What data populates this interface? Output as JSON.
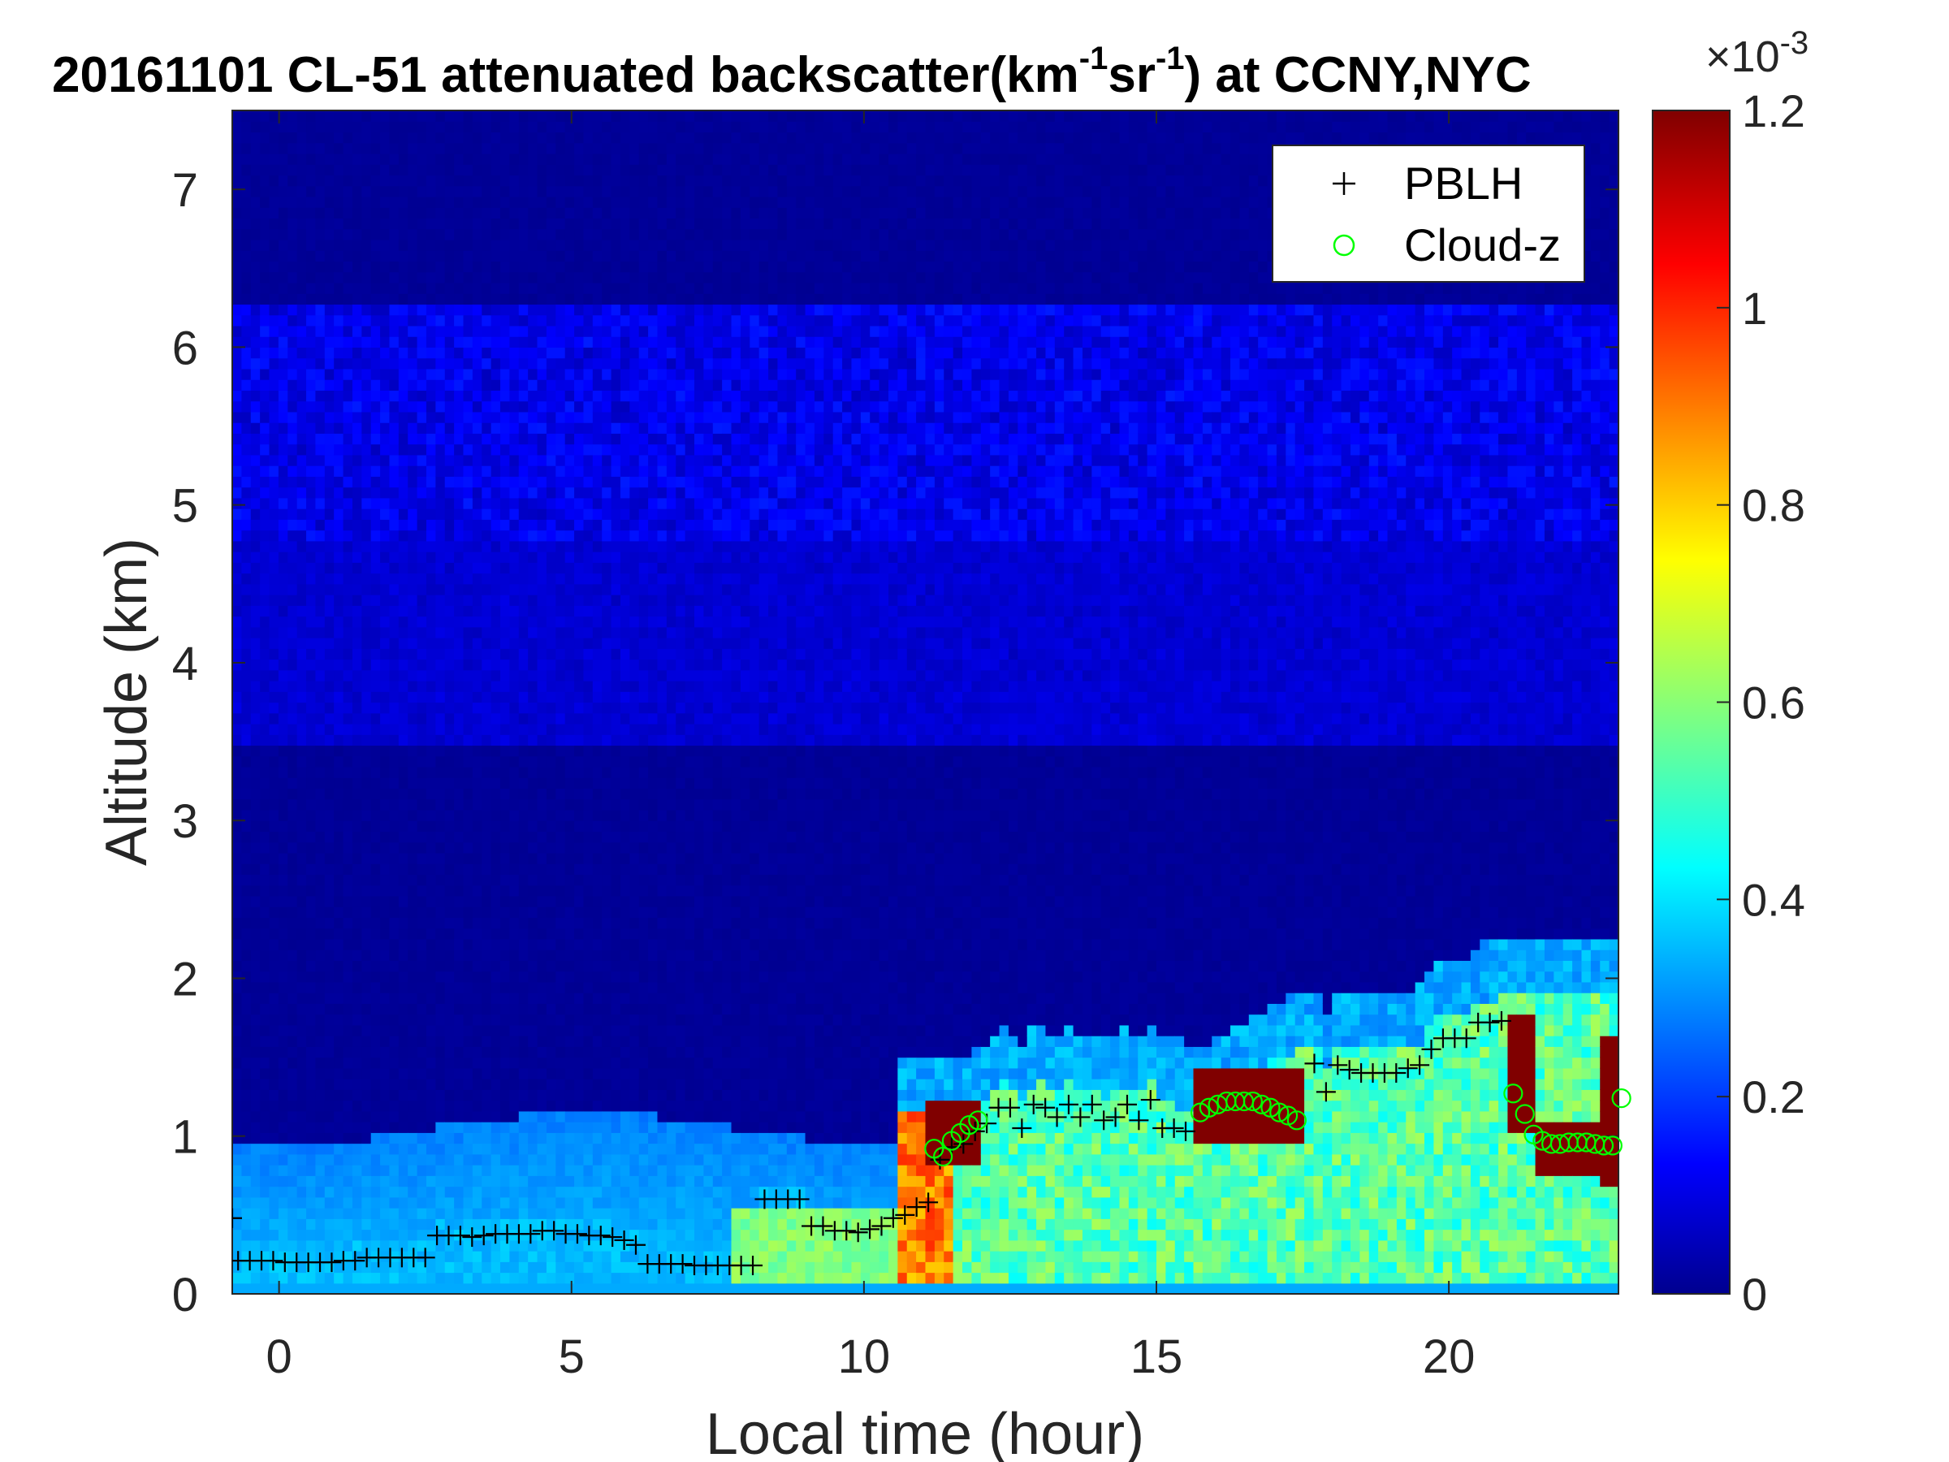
{
  "chart_data": {
    "type": "heatmap",
    "title": {
      "prefix": "20161101  CL-51 attenuated backscatter(km",
      "sup1": "-1",
      "mid": "sr",
      "sup2": "-1",
      "suffix": ") at CCNY,NYC"
    },
    "xlabel": "Local time (hour)",
    "ylabel": "Altitude (km)",
    "xlim": [
      -0.8,
      22.9
    ],
    "ylim": [
      0,
      7.5
    ],
    "x_ticks": [
      {
        "value": 0,
        "label": "0"
      },
      {
        "value": 5,
        "label": "5"
      },
      {
        "value": 10,
        "label": "10"
      },
      {
        "value": 15,
        "label": "15"
      },
      {
        "value": 20,
        "label": "20"
      }
    ],
    "y_ticks": [
      {
        "value": 0,
        "label": "0"
      },
      {
        "value": 1,
        "label": "1"
      },
      {
        "value": 2,
        "label": "2"
      },
      {
        "value": 3,
        "label": "3"
      },
      {
        "value": 4,
        "label": "4"
      },
      {
        "value": 5,
        "label": "5"
      },
      {
        "value": 6,
        "label": "6"
      },
      {
        "value": 7,
        "label": "7"
      }
    ],
    "colorbar": {
      "colormap": "jet",
      "range": [
        0,
        1.2
      ],
      "exponent_label": {
        "base": "×10",
        "sup": "-3"
      },
      "ticks": [
        {
          "value": 0,
          "label": "0"
        },
        {
          "value": 0.2,
          "label": "0.2"
        },
        {
          "value": 0.4,
          "label": "0.4"
        },
        {
          "value": 0.6,
          "label": "0.6"
        },
        {
          "value": 0.8,
          "label": "0.8"
        },
        {
          "value": 1.0,
          "label": "1"
        },
        {
          "value": 1.2,
          "label": "1.2"
        }
      ]
    },
    "legend": {
      "placement": "top-right",
      "entries": [
        {
          "name": "PBLH",
          "marker": "+",
          "color": "#000000"
        },
        {
          "name": "Cloud-z",
          "marker": "o",
          "color": "#00ff00"
        }
      ]
    },
    "series": [
      {
        "name": "PBLH",
        "x": [
          -0.8,
          -0.7,
          -0.5,
          -0.3,
          -0.1,
          0.1,
          0.3,
          0.5,
          0.7,
          0.9,
          1.1,
          1.3,
          1.5,
          1.7,
          1.9,
          2.1,
          2.3,
          2.5,
          2.7,
          2.9,
          3.1,
          3.3,
          3.5,
          3.7,
          3.9,
          4.1,
          4.3,
          4.5,
          4.7,
          4.9,
          5.1,
          5.3,
          5.5,
          5.7,
          5.9,
          6.1,
          6.3,
          6.5,
          6.7,
          6.9,
          7.1,
          7.3,
          7.5,
          7.7,
          7.9,
          8.1,
          8.3,
          8.5,
          8.7,
          8.9,
          9.1,
          9.3,
          9.5,
          9.7,
          9.9,
          10.1,
          10.3,
          10.5,
          10.7,
          10.9,
          11.1,
          11.3,
          11.5,
          11.7,
          11.9,
          12.1,
          12.3,
          12.5,
          12.7,
          12.9,
          13.1,
          13.3,
          13.5,
          13.7,
          13.9,
          14.1,
          14.3,
          14.5,
          14.7,
          14.9,
          15.1,
          15.3,
          15.5,
          17.7,
          17.9,
          18.1,
          18.3,
          18.5,
          18.7,
          18.9,
          19.1,
          19.3,
          19.5,
          19.7,
          19.9,
          20.1,
          20.3,
          20.5,
          20.7,
          20.9
        ],
        "y": [
          0.48,
          0.21,
          0.21,
          0.21,
          0.21,
          0.2,
          0.2,
          0.2,
          0.2,
          0.2,
          0.21,
          0.21,
          0.23,
          0.23,
          0.23,
          0.23,
          0.23,
          0.23,
          0.37,
          0.37,
          0.37,
          0.36,
          0.37,
          0.38,
          0.38,
          0.38,
          0.38,
          0.4,
          0.4,
          0.38,
          0.38,
          0.37,
          0.37,
          0.36,
          0.34,
          0.31,
          0.19,
          0.19,
          0.19,
          0.19,
          0.18,
          0.18,
          0.18,
          0.18,
          0.18,
          0.18,
          0.6,
          0.6,
          0.6,
          0.6,
          0.43,
          0.43,
          0.4,
          0.4,
          0.39,
          0.41,
          0.43,
          0.48,
          0.5,
          0.55,
          0.58,
          0.85,
          0.93,
          0.95,
          1.03,
          1.08,
          1.18,
          1.18,
          1.05,
          1.2,
          1.18,
          1.12,
          1.2,
          1.12,
          1.2,
          1.1,
          1.12,
          1.2,
          1.1,
          1.23,
          1.05,
          1.05,
          1.03,
          1.46,
          1.28,
          1.45,
          1.42,
          1.4,
          1.4,
          1.4,
          1.4,
          1.43,
          1.45,
          1.55,
          1.62,
          1.62,
          1.62,
          1.72,
          1.72,
          1.73
        ]
      },
      {
        "name": "Cloud-z",
        "x": [
          11.2,
          11.35,
          11.5,
          11.65,
          11.8,
          11.95,
          15.75,
          15.9,
          16.05,
          16.2,
          16.35,
          16.5,
          16.65,
          16.8,
          16.95,
          17.1,
          17.25,
          17.4,
          21.1,
          21.3,
          21.45,
          21.6,
          21.75,
          21.9,
          22.05,
          22.2,
          22.35,
          22.5,
          22.65,
          22.8,
          22.95
        ],
        "y": [
          0.92,
          0.87,
          0.97,
          1.02,
          1.07,
          1.1,
          1.15,
          1.18,
          1.2,
          1.22,
          1.22,
          1.22,
          1.22,
          1.2,
          1.18,
          1.15,
          1.13,
          1.1,
          1.27,
          1.14,
          1.01,
          0.97,
          0.95,
          0.95,
          0.96,
          0.96,
          0.96,
          0.95,
          0.94,
          0.94,
          1.24
        ]
      }
    ]
  }
}
